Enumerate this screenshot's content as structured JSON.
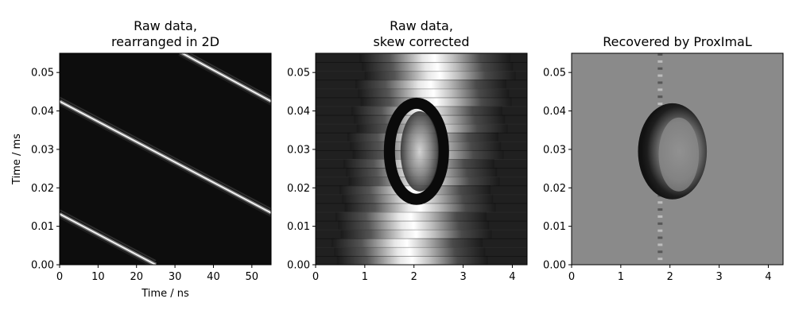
{
  "chart_data": [
    {
      "type": "heatmap",
      "title_lines": [
        "Raw data,",
        "rearranged in 2D"
      ],
      "xlabel": "Time / ns",
      "ylabel": "Time / ms",
      "xlim": [
        0,
        55
      ],
      "ylim": [
        0,
        0.055
      ],
      "xticks": [
        0,
        10,
        20,
        30,
        40,
        50
      ],
      "yticks": [
        0.0,
        0.01,
        0.02,
        0.03,
        0.04,
        0.05
      ],
      "xtick_labels": [
        "0",
        "10",
        "20",
        "30",
        "40",
        "50"
      ],
      "ytick_labels": [
        "0.00",
        "0.01",
        "0.02",
        "0.03",
        "0.04",
        "0.05"
      ],
      "colormap": "gray",
      "background": "#0d0d0d",
      "streaks": [
        {
          "start": [
            0,
            0.0425
          ],
          "end": [
            55,
            0.0135
          ]
        },
        {
          "start": [
            0,
            0.0132
          ],
          "end": [
            25,
            0.0
          ]
        },
        {
          "start": [
            31,
            0.0555
          ],
          "end": [
            55,
            0.0425
          ]
        }
      ]
    },
    {
      "type": "heatmap",
      "title_lines": [
        "Raw data,",
        "skew corrected"
      ],
      "xlabel": "",
      "ylabel": "",
      "xlim": [
        0,
        4.3
      ],
      "ylim": [
        0,
        0.055
      ],
      "xticks": [
        0,
        1,
        2,
        3,
        4
      ],
      "yticks": [
        0.0,
        0.01,
        0.02,
        0.03,
        0.04,
        0.05
      ],
      "xtick_labels": [
        "0",
        "1",
        "2",
        "3",
        "4"
      ],
      "ytick_labels": [
        "0.00",
        "0.01",
        "0.02",
        "0.03",
        "0.04",
        "0.05"
      ],
      "colormap": "gray",
      "background": "#202020",
      "ellipse": {
        "center": [
          2.05,
          0.0295
        ],
        "rx": 0.55,
        "ry": 0.0125
      }
    },
    {
      "type": "heatmap",
      "title_lines": [
        "Recovered by ProxImaL"
      ],
      "xlabel": "",
      "ylabel": "",
      "xlim": [
        0,
        4.3
      ],
      "ylim": [
        0,
        0.055
      ],
      "xticks": [
        0,
        1,
        2,
        3,
        4
      ],
      "yticks": [
        0.0,
        0.01,
        0.02,
        0.03,
        0.04,
        0.05
      ],
      "xtick_labels": [
        "0",
        "1",
        "2",
        "3",
        "4"
      ],
      "ytick_labels": [
        "0.00",
        "0.01",
        "0.02",
        "0.03",
        "0.04",
        "0.05"
      ],
      "colormap": "gray",
      "background": "#8a8a8a",
      "ellipse": {
        "center": [
          2.05,
          0.0295
        ],
        "rx": 0.7,
        "ry": 0.0125
      }
    }
  ]
}
